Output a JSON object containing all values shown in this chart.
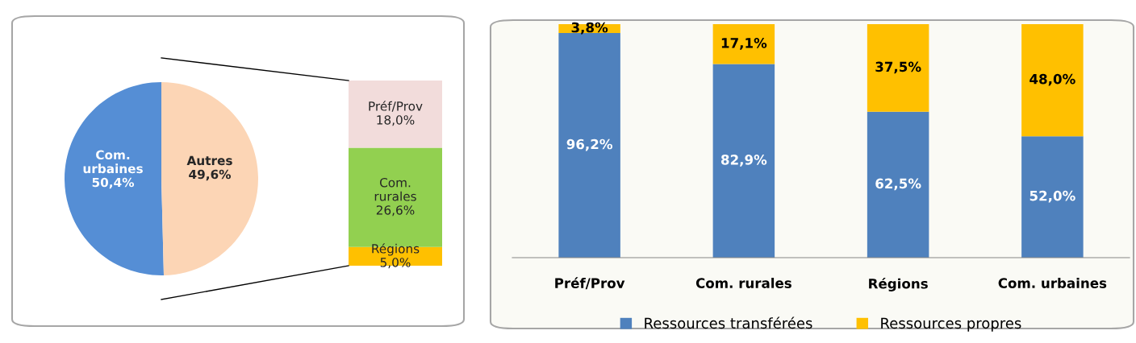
{
  "chart_data": [
    {
      "type": "pie",
      "categories": [
        "Com.\nurbaines",
        "Autres"
      ],
      "values": [
        50.4,
        49.6
      ],
      "colors": [
        "#558ed5",
        "#fcd5b5"
      ],
      "value_labels": [
        "50,4%",
        "49,6%"
      ]
    },
    {
      "type": "bar",
      "stacked": true,
      "categories": [
        null
      ],
      "series": [
        {
          "name": "Régions",
          "color": "#ffc000",
          "values": [
            5.0
          ],
          "value_labels": [
            "5,0%"
          ]
        },
        {
          "name": "Com.\nrurales",
          "color": "#92d050",
          "values": [
            26.6
          ],
          "value_labels": [
            "26,6%"
          ]
        },
        {
          "name": "Préf/Prov",
          "color": "#f2dcdb",
          "values": [
            18.0
          ],
          "value_labels": [
            "18,0%"
          ]
        }
      ]
    },
    {
      "type": "bar",
      "stacked": true,
      "legend": "bottom",
      "categories": [
        "Préf/Prov",
        "Com. rurales",
        "Régions",
        "Com. urbaines"
      ],
      "series": [
        {
          "name": "Ressources transférées",
          "color": "#4f81bd",
          "values": [
            96.2,
            82.9,
            62.5,
            52.0
          ],
          "value_labels": [
            "96,2%",
            "82,9%",
            "62,5%",
            "52,0%"
          ]
        },
        {
          "name": "Ressources propres",
          "color": "#ffc000",
          "values": [
            3.8,
            17.1,
            37.5,
            48.0
          ],
          "value_labels": [
            "3,8%",
            "17,1%",
            "37,5%",
            "48,0%"
          ]
        }
      ]
    }
  ]
}
